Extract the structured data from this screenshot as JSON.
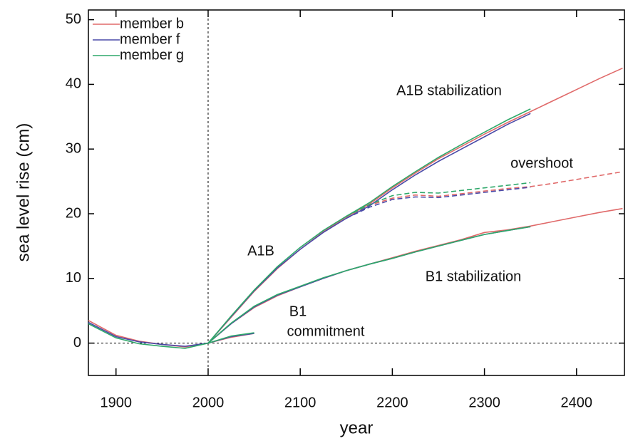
{
  "chart_data": {
    "type": "line",
    "x_label": "year",
    "y_label": "sea level rise (cm)",
    "x": [
      1870,
      1900,
      1925,
      1950,
      1975,
      2000,
      2025,
      2050,
      2075,
      2100,
      2125,
      2150,
      2175,
      2200,
      2225,
      2250,
      2275,
      2300,
      2325,
      2350,
      2375,
      2400,
      2425,
      2450
    ],
    "xlim": [
      1870,
      2452
    ],
    "xticks": [
      1900,
      2000,
      2100,
      2200,
      2300,
      2400
    ],
    "ylim": [
      -5,
      51.5
    ],
    "yticks": [
      0,
      10,
      20,
      30,
      40,
      50
    ],
    "reference_lines": {
      "x": 2000,
      "y": 0
    },
    "legend": "upper left",
    "series": [
      {
        "name": "member b",
        "color": "#e06a6a",
        "values": [
          3.5,
          1.2,
          0.3,
          -0.2,
          -0.6,
          0,
          4,
          8,
          11.5,
          14.5,
          17.2,
          19.5,
          21.5,
          24,
          26.3,
          28.5,
          30.4,
          32.3,
          34.1,
          35.8,
          37.5,
          39.2,
          40.9,
          42.5
        ],
        "overshoot": [
          null,
          null,
          null,
          null,
          null,
          null,
          null,
          null,
          null,
          null,
          null,
          19.5,
          21.3,
          22.4,
          22.9,
          22.7,
          23.1,
          23.5,
          23.9,
          24.2,
          24.7,
          25.3,
          25.9,
          26.5
        ],
        "B1": [
          null,
          null,
          null,
          null,
          null,
          0,
          3,
          5.5,
          7.3,
          8.7,
          10,
          11.2,
          12.2,
          13.2,
          14.2,
          15.1,
          16,
          17.1,
          17.5,
          18.1,
          18.8,
          19.5,
          20.2,
          20.8
        ],
        "commitment": [
          null,
          null,
          null,
          null,
          null,
          0,
          0.9,
          1.5,
          null,
          null,
          null,
          null,
          null,
          null,
          null,
          null,
          null,
          null,
          null,
          null,
          null,
          null,
          null,
          null
        ]
      },
      {
        "name": "member f",
        "color": "#4a4aa8",
        "values": [
          3.2,
          1.0,
          0.2,
          -0.2,
          -0.5,
          0,
          4.1,
          8.1,
          11.6,
          14.5,
          17.1,
          19.3,
          21.2,
          23.7,
          26,
          28.1,
          30,
          31.9,
          33.8,
          35.5,
          null,
          null,
          null,
          null
        ],
        "overshoot": [
          null,
          null,
          null,
          null,
          null,
          null,
          null,
          null,
          null,
          null,
          null,
          19.3,
          21.0,
          22.2,
          22.6,
          22.5,
          22.9,
          23.3,
          23.7,
          24.1,
          null,
          null,
          null,
          null
        ],
        "B1": [
          null,
          null,
          null,
          null,
          null,
          0,
          3,
          5.6,
          7.4,
          8.7,
          10,
          11.2,
          12.2,
          13.1,
          14.1,
          15,
          15.9,
          16.8,
          17.4,
          18.0,
          null,
          null,
          null,
          null
        ],
        "commitment": [
          null,
          null,
          null,
          null,
          null,
          0,
          1.0,
          1.5,
          null,
          null,
          null,
          null,
          null,
          null,
          null,
          null,
          null,
          null,
          null,
          null,
          null,
          null,
          null,
          null
        ]
      },
      {
        "name": "member g",
        "color": "#2ea86a",
        "values": [
          3.0,
          0.8,
          -0.1,
          -0.5,
          -0.8,
          0,
          4.2,
          8.2,
          11.8,
          14.8,
          17.4,
          19.6,
          21.7,
          24.2,
          26.5,
          28.7,
          30.7,
          32.6,
          34.5,
          36.2,
          null,
          null,
          null,
          null
        ],
        "overshoot": [
          null,
          null,
          null,
          null,
          null,
          null,
          null,
          null,
          null,
          null,
          null,
          19.6,
          21.4,
          22.8,
          23.3,
          23.2,
          23.6,
          24.0,
          24.4,
          24.8,
          null,
          null,
          null,
          null
        ],
        "B1": [
          null,
          null,
          null,
          null,
          null,
          0,
          3.1,
          5.7,
          7.5,
          8.8,
          10.1,
          11.2,
          12.2,
          13.1,
          14.1,
          15,
          15.9,
          16.8,
          17.4,
          18.0,
          null,
          null,
          null,
          null
        ],
        "commitment": [
          null,
          null,
          null,
          null,
          null,
          0,
          1.1,
          1.6,
          null,
          null,
          null,
          null,
          null,
          null,
          null,
          null,
          null,
          null,
          null,
          null,
          null,
          null,
          null,
          null
        ]
      }
    ],
    "annotations": [
      "A1B stabilization",
      "overshoot",
      "A1B",
      "B1 stabilization",
      "B1",
      "commitment"
    ]
  }
}
